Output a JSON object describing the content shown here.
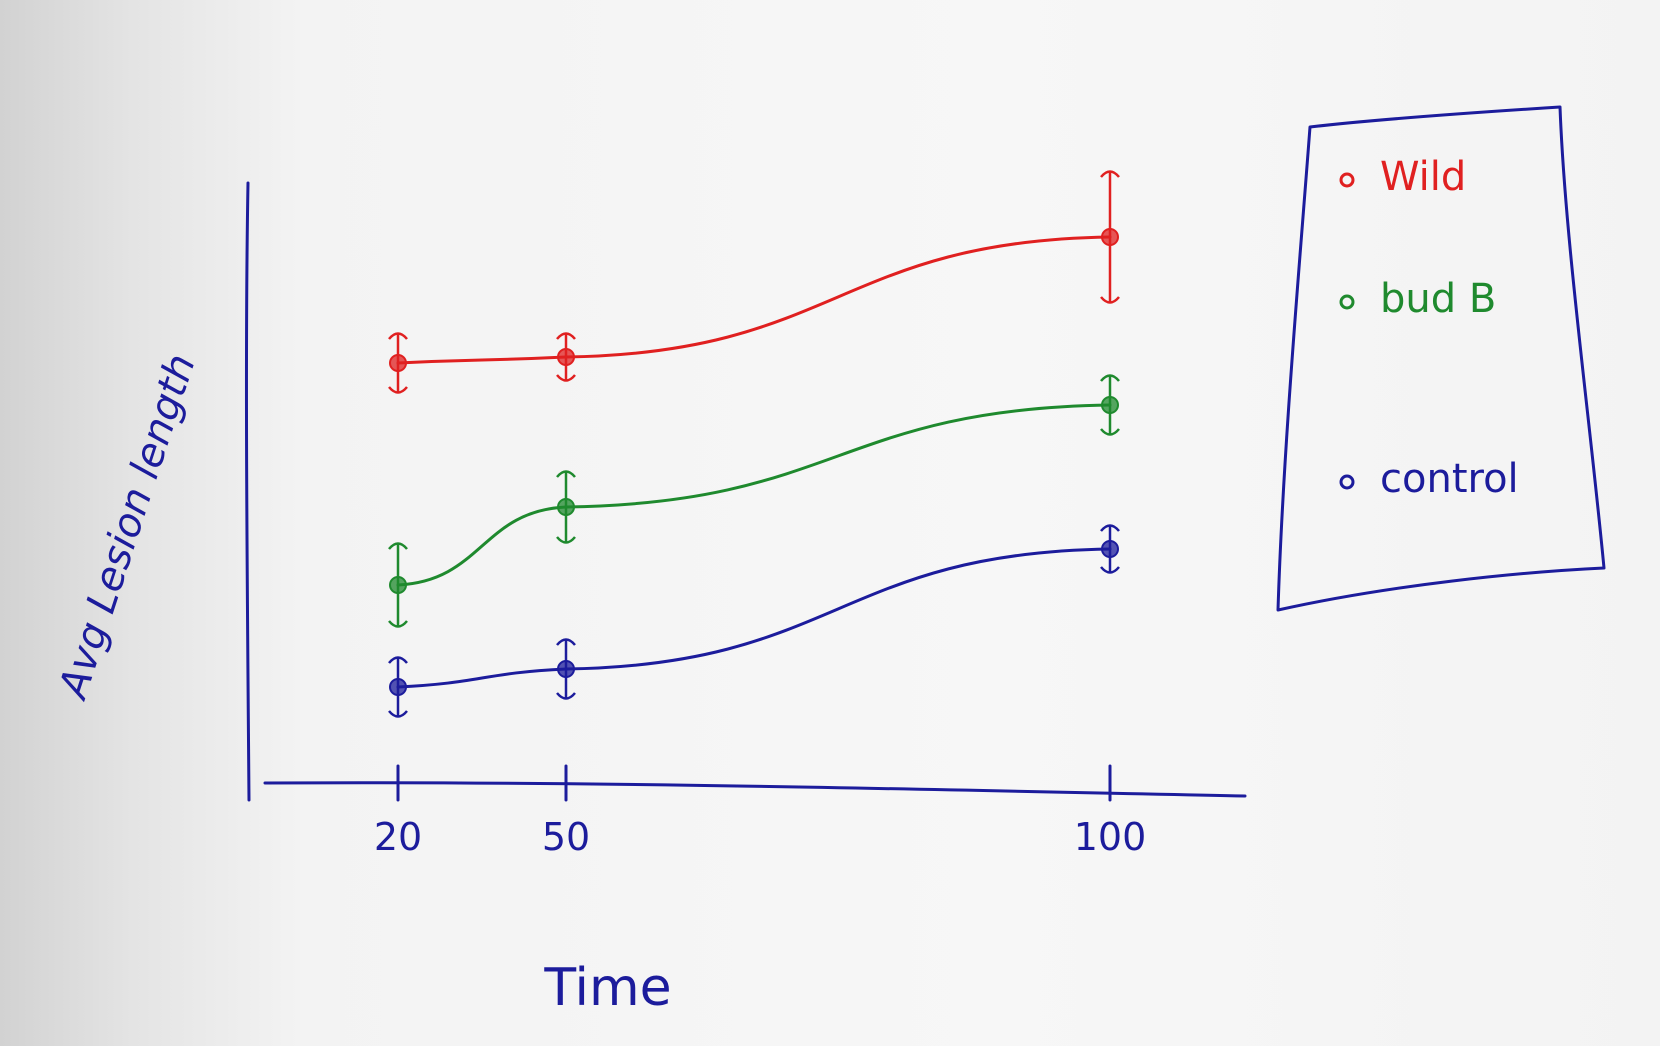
{
  "chart_data": {
    "type": "line",
    "title": "",
    "xlabel": "Time",
    "ylabel": "Avg Lesion length",
    "x": [
      20,
      50,
      100
    ],
    "x_ticks": [
      "20",
      "50",
      "100"
    ],
    "y_ticks": [],
    "ylim": [
      0,
      10
    ],
    "grid": false,
    "legend_position": "top-right",
    "error_bars": true,
    "series": [
      {
        "name": "Wild",
        "color": "#e02020",
        "values": [
          7.0,
          7.1,
          9.1
        ],
        "errors": [
          0.5,
          0.4,
          1.1
        ]
      },
      {
        "name": "bud B",
        "color": "#1f8a2e",
        "values": [
          3.3,
          4.6,
          6.3
        ],
        "errors": [
          0.7,
          0.6,
          0.5
        ]
      },
      {
        "name": "control",
        "color": "#1c1c9c",
        "values": [
          1.6,
          1.9,
          3.9
        ],
        "errors": [
          0.5,
          0.5,
          0.4
        ]
      }
    ]
  },
  "colors": {
    "ink": "#1c1c9c",
    "paper": "#f6f6f6"
  }
}
